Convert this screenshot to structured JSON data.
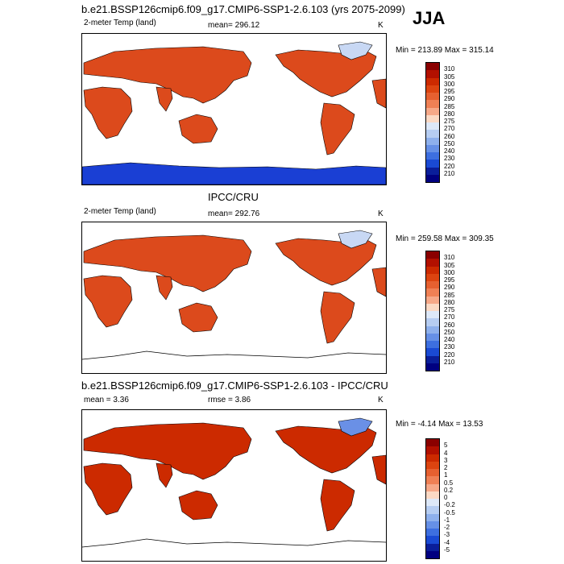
{
  "header": {
    "title": "b.e21.BSSP126cmip6.f09_g17.CMIP6-SSP1-2.6.103 (yrs 2075-2099)",
    "season": "JJA"
  },
  "panels": [
    {
      "title": "",
      "variable": "2-meter Temp (land)",
      "stat_text": "mean= 296.12",
      "units": "K",
      "minmax": "Min = 213.89 Max = 315.14",
      "antarctica_filled": true,
      "colorbar_labels": [
        "310",
        "305",
        "300",
        "295",
        "290",
        "285",
        "280",
        "275",
        "270",
        "260",
        "250",
        "240",
        "230",
        "220",
        "210"
      ]
    },
    {
      "title": "IPCC/CRU",
      "variable": "2-meter Temp (land)",
      "stat_text": "mean= 292.76",
      "units": "K",
      "minmax": "Min = 259.58 Max = 309.35",
      "antarctica_filled": false,
      "colorbar_labels": [
        "310",
        "305",
        "300",
        "295",
        "290",
        "285",
        "280",
        "275",
        "270",
        "260",
        "250",
        "240",
        "230",
        "220",
        "210"
      ]
    },
    {
      "title": "b.e21.BSSP126cmip6.f09_g17.CMIP6-SSP1-2.6.103 - IPCC/CRU",
      "variable": "mean =   3.36",
      "stat_text": "rmse =   3.86",
      "units": "K",
      "minmax": "Min =  -4.14 Max =  13.53",
      "antarctica_filled": false,
      "colorbar_labels": [
        "5",
        "4",
        "3",
        "2",
        "1",
        "0.5",
        "0.2",
        "0",
        "-0.2",
        "-0.5",
        "-1",
        "-2",
        "-3",
        "-4",
        "-5"
      ]
    }
  ],
  "colors": {
    "temp_scale": [
      "#8a0000",
      "#b21000",
      "#cc2a00",
      "#dc4410",
      "#e66030",
      "#ef8055",
      "#f6a888",
      "#fbd9c4",
      "#dde8f8",
      "#b6cdf2",
      "#8eb0ec",
      "#6690e6",
      "#3d6fe0",
      "#1a4ad4",
      "#0a1e9a",
      "#000080"
    ],
    "diff_scale": [
      "#8a0000",
      "#b21000",
      "#cc2a00",
      "#dc4410",
      "#e66030",
      "#ef8055",
      "#f6a888",
      "#fbd9c4",
      "#dde8f8",
      "#b6cdf2",
      "#8eb0ec",
      "#6690e6",
      "#3d6fe0",
      "#1a4ad4",
      "#0a1e9a",
      "#000080"
    ]
  }
}
